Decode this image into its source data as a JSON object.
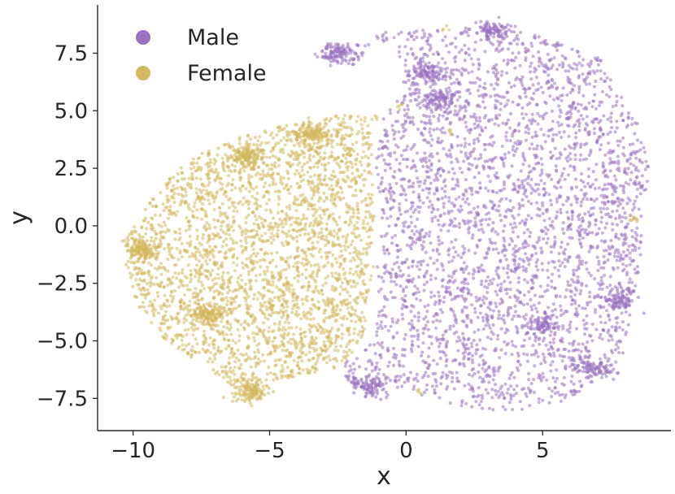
{
  "chart_data": {
    "type": "scatter",
    "title": "",
    "xlabel": "x",
    "ylabel": "y",
    "xlim": [
      -11.3,
      9.7
    ],
    "ylim": [
      -8.9,
      9.6
    ],
    "xticks": [
      -10,
      -5,
      0,
      5
    ],
    "xtick_labels": [
      "−10",
      "−5",
      "0",
      "5"
    ],
    "yticks": [
      -7.5,
      -5.0,
      -2.5,
      0.0,
      2.5,
      5.0,
      7.5
    ],
    "ytick_labels": [
      "−7.5",
      "−5.0",
      "−2.5",
      "0.0",
      "2.5",
      "5.0",
      "7.5"
    ],
    "grid": false,
    "legend_position": "top-left",
    "series": [
      {
        "name": "Male",
        "color": "#9b72c0",
        "approx_point_count": 4000,
        "region_outline": [
          [
            -0.8,
            5.0
          ],
          [
            -0.3,
            5.6
          ],
          [
            0.0,
            6.8
          ],
          [
            -0.5,
            7.9
          ],
          [
            -2.6,
            8.0
          ],
          [
            -3.1,
            7.8
          ],
          [
            -3.0,
            7.1
          ],
          [
            -1.8,
            7.0
          ],
          [
            -1.0,
            8.5
          ],
          [
            0.5,
            8.5
          ],
          [
            2.0,
            8.6
          ],
          [
            3.5,
            8.7
          ],
          [
            5.5,
            8.0
          ],
          [
            7.0,
            7.4
          ],
          [
            7.8,
            6.0
          ],
          [
            8.5,
            4.5
          ],
          [
            8.9,
            2.5
          ],
          [
            8.7,
            0.5
          ],
          [
            8.6,
            -1.5
          ],
          [
            8.3,
            -3.5
          ],
          [
            8.0,
            -5.5
          ],
          [
            7.1,
            -6.8
          ],
          [
            5.8,
            -7.6
          ],
          [
            4.2,
            -8.0
          ],
          [
            2.5,
            -8.0
          ],
          [
            1.0,
            -7.5
          ],
          [
            -0.5,
            -7.0
          ],
          [
            -1.5,
            -7.3
          ],
          [
            -2.3,
            -6.8
          ],
          [
            -2.3,
            -6.0
          ],
          [
            -1.2,
            -5.0
          ],
          [
            -1.0,
            -3.5
          ],
          [
            -1.1,
            -2.0
          ],
          [
            -0.9,
            -0.5
          ],
          [
            -1.0,
            1.0
          ],
          [
            -1.1,
            2.5
          ],
          [
            -1.0,
            4.0
          ]
        ],
        "dense_clusters": [
          [
            0.8,
            6.6
          ],
          [
            1.3,
            5.5
          ],
          [
            -2.6,
            7.5
          ],
          [
            6.9,
            -6.2
          ],
          [
            5.0,
            -4.3
          ],
          [
            7.8,
            -3.2
          ],
          [
            -1.3,
            -7.0
          ],
          [
            3.2,
            8.5
          ]
        ]
      },
      {
        "name": "Female",
        "color": "#d4b85f",
        "approx_point_count": 3500,
        "region_outline": [
          [
            -1.0,
            4.8
          ],
          [
            -2.5,
            4.8
          ],
          [
            -4.0,
            4.5
          ],
          [
            -5.5,
            4.1
          ],
          [
            -7.0,
            3.5
          ],
          [
            -8.2,
            2.6
          ],
          [
            -9.3,
            1.3
          ],
          [
            -10.2,
            -0.5
          ],
          [
            -10.3,
            -2.0
          ],
          [
            -9.8,
            -3.5
          ],
          [
            -8.8,
            -5.0
          ],
          [
            -7.5,
            -6.0
          ],
          [
            -6.2,
            -7.2
          ],
          [
            -5.0,
            -6.8
          ],
          [
            -3.5,
            -6.4
          ],
          [
            -2.5,
            -6.2
          ],
          [
            -1.6,
            -5.0
          ],
          [
            -1.4,
            -3.5
          ],
          [
            -1.2,
            -2.0
          ],
          [
            -1.1,
            -0.5
          ],
          [
            -1.1,
            1.0
          ],
          [
            -1.3,
            2.5
          ],
          [
            -1.2,
            4.0
          ]
        ],
        "dense_clusters": [
          [
            -5.7,
            -7.2
          ],
          [
            -5.8,
            3.0
          ],
          [
            -7.2,
            -3.8
          ],
          [
            -9.7,
            -1.0
          ],
          [
            -3.5,
            4.0
          ]
        ],
        "stray_points": [
          [
            8.4,
            0.3
          ],
          [
            8.3,
            0.2
          ],
          [
            -0.2,
            5.2
          ],
          [
            1.4,
            8.6
          ],
          [
            1.6,
            4.0
          ],
          [
            0.5,
            -7.2
          ]
        ]
      }
    ]
  },
  "legend": {
    "items": [
      {
        "label": "Male",
        "color": "#9b72c0"
      },
      {
        "label": "Female",
        "color": "#d4b85f"
      }
    ]
  }
}
